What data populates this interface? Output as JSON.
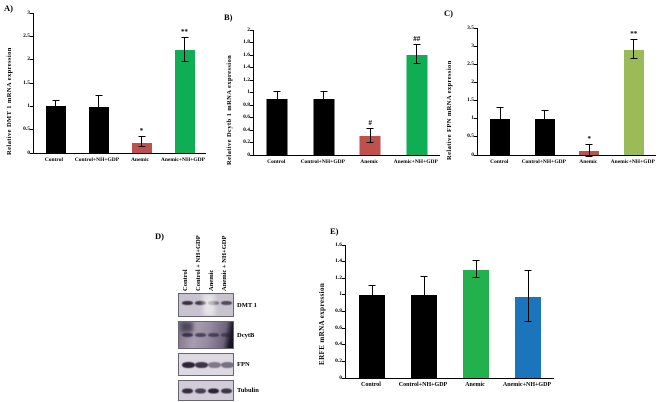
{
  "figure_background": "#ffffff",
  "chart_data": [
    {
      "id": "A",
      "type": "bar",
      "panel_label": "A)",
      "title": "",
      "xlabel": "",
      "ylabel": "Relative DMT 1 mRNA expression",
      "categories": [
        "Control",
        "Control+NH+GDP",
        "Anemic",
        "Anemic+NH+GDP"
      ],
      "values": [
        1.0,
        0.98,
        0.22,
        2.2
      ],
      "errors": [
        0.1,
        0.22,
        0.1,
        0.25
      ],
      "sig": [
        "",
        "",
        "*",
        "**"
      ],
      "bar_colors": [
        "#000000",
        "#000000",
        "#c0504d",
        "#0fae54"
      ],
      "ymax": 3,
      "ylim": [
        0,
        3
      ],
      "grid": false,
      "yticks": [
        "0",
        "0.5",
        "1",
        "1.5",
        "2",
        "2.5",
        "3"
      ]
    },
    {
      "id": "B",
      "type": "bar",
      "panel_label": "B)",
      "title": "",
      "xlabel": "",
      "ylabel": "Relative Dcytb 1 mRNA expression",
      "categories": [
        "Control",
        "Control+NH+GDP",
        "Anemic",
        "Anemic+NH+GDP"
      ],
      "values": [
        0.9,
        0.9,
        0.3,
        1.6
      ],
      "errors": [
        0.1,
        0.1,
        0.1,
        0.15
      ],
      "sig": [
        "",
        "",
        "#",
        "##"
      ],
      "bar_colors": [
        "#000000",
        "#000000",
        "#c0504d",
        "#0fae54"
      ],
      "ymax": 2,
      "ylim": [
        0,
        2
      ],
      "grid": false,
      "yticks": [
        "0",
        "0.2",
        "0.4",
        "0.6",
        "0.8",
        "1",
        "1.2",
        "1.4",
        "1.6",
        "1.8",
        "2"
      ]
    },
    {
      "id": "C",
      "type": "bar",
      "panel_label": "C)",
      "title": "",
      "xlabel": "",
      "ylabel": "Relative FPN mRNA expression",
      "categories": [
        "Control",
        "Control+NH+GDP",
        "Anemic",
        "Anemic+NH+GDP"
      ],
      "values": [
        1.0,
        1.0,
        0.1,
        2.9
      ],
      "errors": [
        0.28,
        0.18,
        0.15,
        0.25
      ],
      "sig": [
        "",
        "",
        "*",
        "**"
      ],
      "bar_colors": [
        "#000000",
        "#000000",
        "#c0504d",
        "#9bbb59"
      ],
      "ymax": 3.5,
      "ylim": [
        0,
        3.5
      ],
      "grid": false,
      "yticks": [
        "0",
        "0.5",
        "1",
        "1.5",
        "2",
        "2.5",
        "3",
        "3.5"
      ]
    },
    {
      "id": "E",
      "type": "bar",
      "panel_label": "E)",
      "title": "",
      "xlabel": "",
      "ylabel": "ERFE mRNA expression",
      "categories": [
        "Control",
        "Control+NH+GDP",
        "Anemic",
        "Anemic+NH+GDP"
      ],
      "values": [
        1.0,
        1.0,
        1.3,
        0.97
      ],
      "errors": [
        0.1,
        0.2,
        0.1,
        0.3
      ],
      "sig": [
        "",
        "",
        "",
        ""
      ],
      "bar_colors": [
        "#000000",
        "#000000",
        "#22b14c",
        "#1b75bc"
      ],
      "ymax": 1.6,
      "ylim": [
        0,
        1.6
      ],
      "grid": false,
      "yticks": [
        "0",
        "0.2",
        "0.4",
        "0.6",
        "0.8",
        "1",
        "1.2",
        "1.4",
        "1.6"
      ]
    }
  ],
  "blot": {
    "panel_label": "D)",
    "lane_labels": [
      "Control",
      "Control + NH+GDP",
      "Anemic",
      "Anemic + NH+GDP"
    ],
    "rows": [
      {
        "label": "DMT 1",
        "lanes": [
          0.88,
          0.82,
          0.55,
          0.72
        ]
      },
      {
        "label": "DcytB",
        "lanes": [
          0.75,
          0.65,
          0.62,
          0.55
        ]
      },
      {
        "label": "FPN",
        "lanes": [
          0.95,
          0.85,
          0.5,
          0.55
        ]
      },
      {
        "label": "Tubulin",
        "lanes": [
          0.9,
          0.8,
          0.95,
          0.85
        ]
      }
    ]
  }
}
